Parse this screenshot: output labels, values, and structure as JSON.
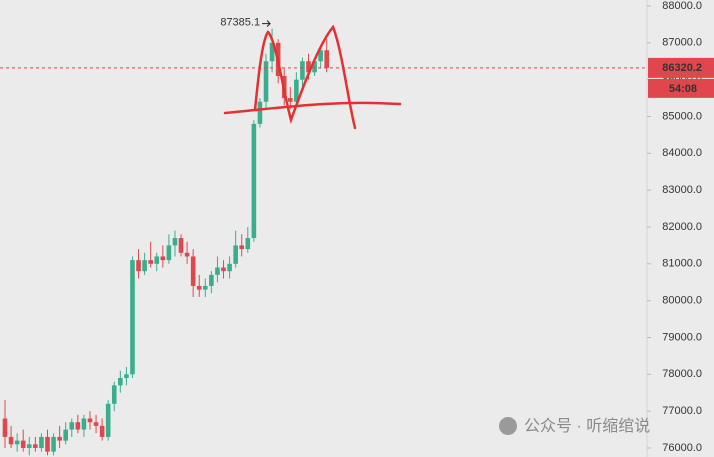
{
  "chart_data": {
    "type": "candlestick",
    "open": [
      76800,
      76300,
      76100,
      76200,
      76000,
      76100,
      76000,
      76300,
      75900,
      76300,
      76200,
      76500,
      76700,
      76500,
      76800,
      76700,
      76600,
      76300,
      77200,
      77700,
      77900,
      78000,
      81100,
      80800,
      81100,
      81000,
      81200,
      81100,
      81500,
      81700,
      81300,
      81200,
      80400,
      80300,
      80400,
      80700,
      80900,
      80800,
      81000,
      81500,
      81400,
      81700,
      84800,
      85400,
      86500,
      87000,
      86100,
      85500,
      85400,
      86000,
      86500,
      86200,
      86500,
      86800
    ],
    "high": [
      77300,
      76600,
      76400,
      76500,
      76300,
      76300,
      76400,
      76500,
      76400,
      76600,
      76700,
      76800,
      76900,
      76900,
      77000,
      76900,
      76800,
      77300,
      77800,
      78100,
      78200,
      81200,
      81400,
      81300,
      81600,
      81300,
      81500,
      81800,
      81900,
      81800,
      81600,
      81400,
      80700,
      80600,
      80800,
      81200,
      81100,
      81200,
      81900,
      81800,
      82000,
      84900,
      85500,
      86700,
      87385.1,
      87100,
      86300,
      85800,
      86200,
      86600,
      86700,
      86600,
      86900,
      87100
    ],
    "low": [
      76000,
      76000,
      75900,
      75900,
      75800,
      75900,
      75900,
      75800,
      75800,
      76000,
      76100,
      76300,
      76400,
      76300,
      76500,
      76400,
      76200,
      76200,
      77000,
      77500,
      77700,
      77900,
      80600,
      80700,
      80900,
      80800,
      80900,
      81000,
      81200,
      81200,
      81000,
      80100,
      80100,
      80100,
      80200,
      80500,
      80600,
      80600,
      80900,
      81200,
      81300,
      81600,
      84700,
      85200,
      86200,
      85900,
      85300,
      85200,
      85300,
      85800,
      86000,
      86100,
      86300,
      86200
    ],
    "close": [
      76300,
      76100,
      76200,
      76000,
      76100,
      76000,
      76300,
      75900,
      76300,
      76200,
      76500,
      76700,
      76500,
      76800,
      76700,
      76600,
      76300,
      77200,
      77700,
      77900,
      78000,
      81100,
      80800,
      81100,
      81000,
      81200,
      81100,
      81500,
      81700,
      81300,
      81200,
      80400,
      80300,
      80400,
      80700,
      80900,
      80800,
      81000,
      81500,
      81400,
      81700,
      84800,
      85400,
      86500,
      87000,
      86100,
      85500,
      85400,
      86000,
      86500,
      86200,
      86500,
      86800,
      86320.2
    ],
    "up_color": "#3aae8c",
    "down_color": "#e0474c",
    "ylim": [
      75755,
      88163
    ],
    "yticks": [
      {
        "value": 76000,
        "label": "76000.0"
      },
      {
        "value": 77000,
        "label": "77000.0"
      },
      {
        "value": 78000,
        "label": "78000.0"
      },
      {
        "value": 79000,
        "label": "79000.0"
      },
      {
        "value": 80000,
        "label": "80000.0"
      },
      {
        "value": 81000,
        "label": "81000.0"
      },
      {
        "value": 82000,
        "label": "82000.0"
      },
      {
        "value": 83000,
        "label": "83000.0"
      },
      {
        "value": 84000,
        "label": "84000.0"
      },
      {
        "value": 85000,
        "label": "85000.0"
      },
      {
        "value": 86000,
        "label": "86000.0"
      },
      {
        "value": 87000,
        "label": "87000.0"
      },
      {
        "value": 88000,
        "label": "88000.0"
      }
    ],
    "last_price": 86320.2,
    "countdown": "54:08",
    "high_annotation": 87385.1,
    "watermark": "公众号 · 听缩绾说"
  }
}
